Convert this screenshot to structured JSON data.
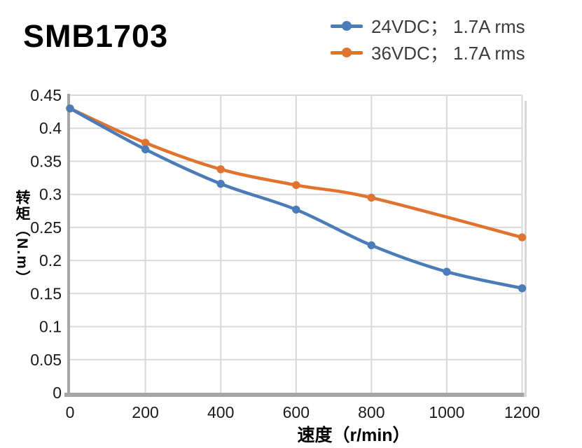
{
  "title": "SMB1703",
  "legend": {
    "items": [
      {
        "label": "24VDC； 1.7A rms",
        "color": "#4a7cba"
      },
      {
        "label": "36VDC； 1.7A rms",
        "color": "#e1732e"
      }
    ]
  },
  "colors": {
    "series_blue": "#4a7cba",
    "series_orange": "#e1732e",
    "gridline": "#d9d9d9",
    "axis_line": "#a6a6a6",
    "plot_shadow": "#d8d8d8",
    "tick_text": "#1a1a1a",
    "legend_text": "#3c3c3c",
    "title_text": "#000000"
  },
  "chart_data": {
    "type": "line",
    "title": "SMB1703",
    "xlabel": "速度（r/min）",
    "ylabel": "转矩（N.m）",
    "xlim": [
      0,
      1200
    ],
    "ylim": [
      0,
      0.45
    ],
    "x_ticks": [
      0,
      200,
      400,
      600,
      800,
      1000,
      1200
    ],
    "x_tick_labels": [
      "0",
      "200",
      "400",
      "600",
      "800",
      "1000",
      "1200"
    ],
    "y_ticks": [
      0,
      0.05,
      0.1,
      0.15,
      0.2,
      0.25,
      0.3,
      0.35,
      0.4,
      0.45
    ],
    "y_tick_labels": [
      "0",
      "0.05",
      "0.1",
      "0.15",
      "0.2",
      "0.25",
      "0.3",
      "0.35",
      "0.4",
      "0.45"
    ],
    "grid": true,
    "smooth": true,
    "legend_position": "top-right",
    "series": [
      {
        "name": "24VDC； 1.7A rms",
        "color": "#4a7cba",
        "points": [
          [
            0,
            0.43
          ],
          [
            200,
            0.368
          ],
          [
            400,
            0.316
          ],
          [
            600,
            0.277
          ],
          [
            800,
            0.223
          ],
          [
            1000,
            0.183
          ],
          [
            1200,
            0.158
          ]
        ]
      },
      {
        "name": "36VDC； 1.7A rms",
        "color": "#e1732e",
        "points": [
          [
            0,
            0.43
          ],
          [
            200,
            0.378
          ],
          [
            400,
            0.338
          ],
          [
            600,
            0.314
          ],
          [
            800,
            0.295
          ],
          [
            1200,
            0.235
          ]
        ]
      }
    ]
  }
}
